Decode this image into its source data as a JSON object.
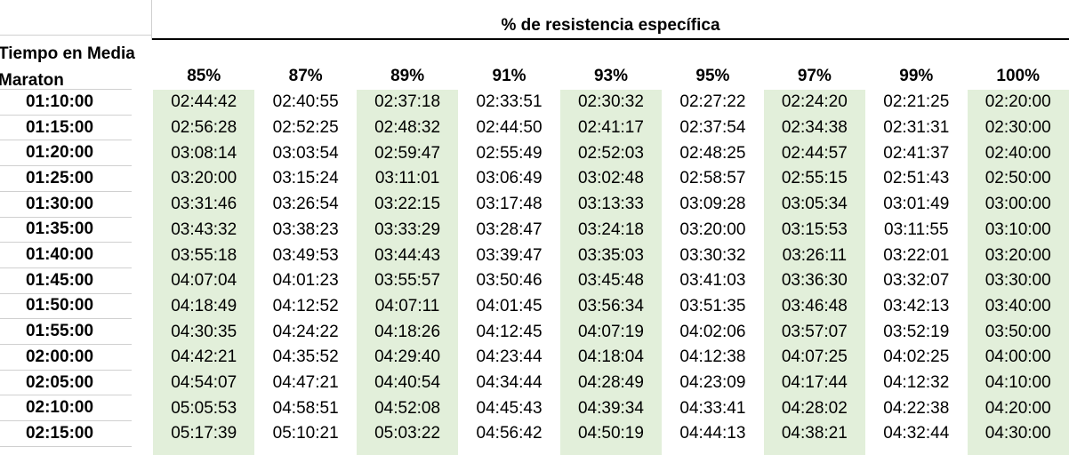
{
  "header": {
    "title": "% de resistencia específica",
    "row_label_title": "Tiempo en Media Maraton",
    "columns": [
      "85%",
      "87%",
      "89%",
      "91%",
      "93%",
      "95%",
      "97%",
      "99%",
      "100%"
    ]
  },
  "highlighted_columns": [
    0,
    2,
    4,
    6,
    8
  ],
  "colors": {
    "highlight": "#e2efda",
    "gridline": "#d0d0d0",
    "header_border": "#000000",
    "text": "#000000"
  },
  "table": {
    "rows": [
      {
        "label": "01:10:00",
        "values": [
          "02:44:42",
          "02:40:55",
          "02:37:18",
          "02:33:51",
          "02:30:32",
          "02:27:22",
          "02:24:20",
          "02:21:25",
          "02:20:00"
        ]
      },
      {
        "label": "01:15:00",
        "values": [
          "02:56:28",
          "02:52:25",
          "02:48:32",
          "02:44:50",
          "02:41:17",
          "02:37:54",
          "02:34:38",
          "02:31:31",
          "02:30:00"
        ]
      },
      {
        "label": "01:20:00",
        "values": [
          "03:08:14",
          "03:03:54",
          "02:59:47",
          "02:55:49",
          "02:52:03",
          "02:48:25",
          "02:44:57",
          "02:41:37",
          "02:40:00"
        ]
      },
      {
        "label": "01:25:00",
        "values": [
          "03:20:00",
          "03:15:24",
          "03:11:01",
          "03:06:49",
          "03:02:48",
          "02:58:57",
          "02:55:15",
          "02:51:43",
          "02:50:00"
        ]
      },
      {
        "label": "01:30:00",
        "values": [
          "03:31:46",
          "03:26:54",
          "03:22:15",
          "03:17:48",
          "03:13:33",
          "03:09:28",
          "03:05:34",
          "03:01:49",
          "03:00:00"
        ]
      },
      {
        "label": "01:35:00",
        "values": [
          "03:43:32",
          "03:38:23",
          "03:33:29",
          "03:28:47",
          "03:24:18",
          "03:20:00",
          "03:15:53",
          "03:11:55",
          "03:10:00"
        ]
      },
      {
        "label": "01:40:00",
        "values": [
          "03:55:18",
          "03:49:53",
          "03:44:43",
          "03:39:47",
          "03:35:03",
          "03:30:32",
          "03:26:11",
          "03:22:01",
          "03:20:00"
        ]
      },
      {
        "label": "01:45:00",
        "values": [
          "04:07:04",
          "04:01:23",
          "03:55:57",
          "03:50:46",
          "03:45:48",
          "03:41:03",
          "03:36:30",
          "03:32:07",
          "03:30:00"
        ]
      },
      {
        "label": "01:50:00",
        "values": [
          "04:18:49",
          "04:12:52",
          "04:07:11",
          "04:01:45",
          "03:56:34",
          "03:51:35",
          "03:46:48",
          "03:42:13",
          "03:40:00"
        ]
      },
      {
        "label": "01:55:00",
        "values": [
          "04:30:35",
          "04:24:22",
          "04:18:26",
          "04:12:45",
          "04:07:19",
          "04:02:06",
          "03:57:07",
          "03:52:19",
          "03:50:00"
        ]
      },
      {
        "label": "02:00:00",
        "values": [
          "04:42:21",
          "04:35:52",
          "04:29:40",
          "04:23:44",
          "04:18:04",
          "04:12:38",
          "04:07:25",
          "04:02:25",
          "04:00:00"
        ]
      },
      {
        "label": "02:05:00",
        "values": [
          "04:54:07",
          "04:47:21",
          "04:40:54",
          "04:34:44",
          "04:28:49",
          "04:23:09",
          "04:17:44",
          "04:12:32",
          "04:10:00"
        ]
      },
      {
        "label": "02:10:00",
        "values": [
          "05:05:53",
          "04:58:51",
          "04:52:08",
          "04:45:43",
          "04:39:34",
          "04:33:41",
          "04:28:02",
          "04:22:38",
          "04:20:00"
        ]
      },
      {
        "label": "02:15:00",
        "values": [
          "05:17:39",
          "05:10:21",
          "05:03:22",
          "04:56:42",
          "04:50:19",
          "04:44:13",
          "04:38:21",
          "04:32:44",
          "04:30:00"
        ]
      }
    ]
  }
}
